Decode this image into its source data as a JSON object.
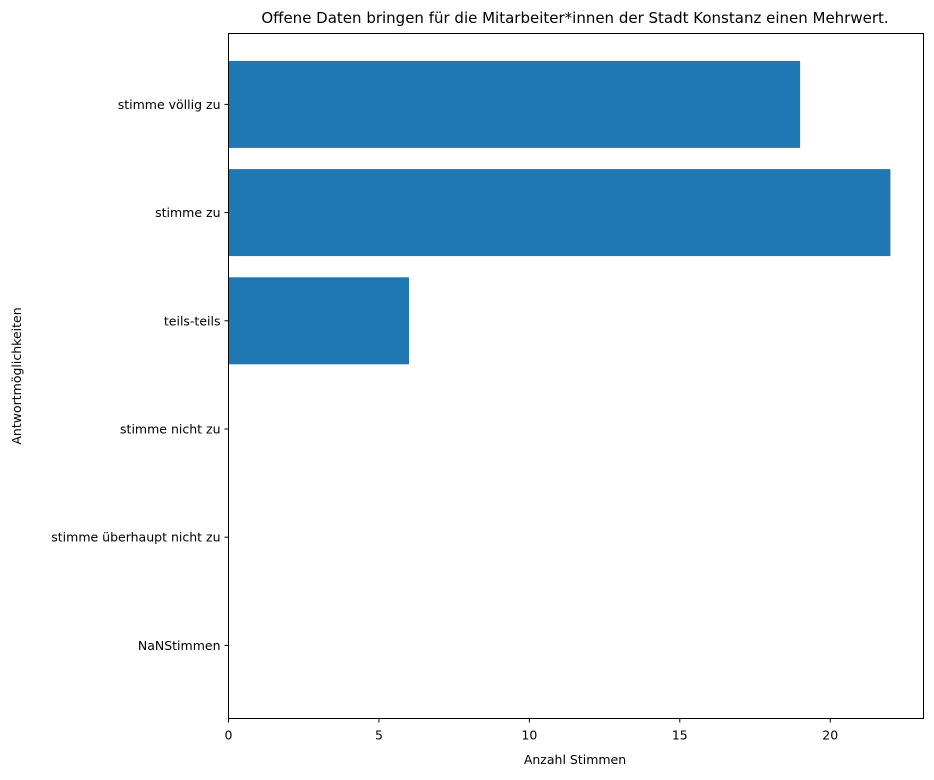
{
  "chart_data": {
    "type": "bar",
    "orientation": "horizontal",
    "title": "Offene Daten bringen für die Mitarbeiter*innen der Stadt Konstanz einen Mehrwert.",
    "xlabel": "Anzahl Stimmen",
    "ylabel": "Antwortmöglichkeiten",
    "categories": [
      "stimme völlig zu",
      "stimme zu",
      "teils-teils",
      "stimme nicht zu",
      "stimme überhaupt nicht zu",
      "NaNStimmen"
    ],
    "values": [
      19,
      22,
      6,
      0,
      0,
      0
    ],
    "xlim": [
      0,
      23.1
    ],
    "xticks": [
      0,
      5,
      10,
      15,
      20
    ],
    "bar_color": "#1f77b4",
    "grid": false,
    "legend": "none"
  }
}
